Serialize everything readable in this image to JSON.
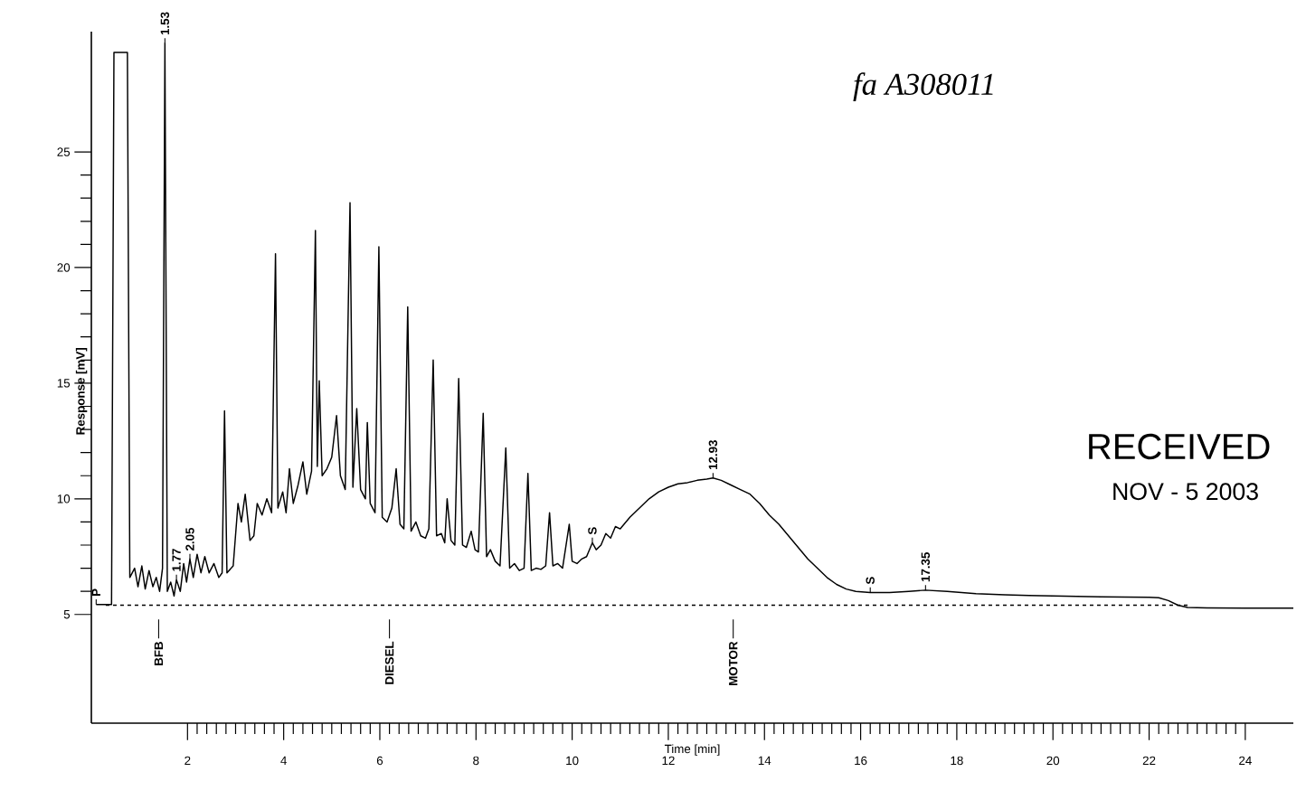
{
  "chart_data": {
    "type": "line",
    "xlabel": "Time [min]",
    "ylabel": "Response [mV]",
    "xlim": [
      0,
      25
    ],
    "ylim": [
      0.3,
      30.2
    ],
    "xticks": [
      2,
      4,
      6,
      8,
      10,
      12,
      14,
      16,
      18,
      20,
      22,
      24
    ],
    "yticks": [
      5,
      10,
      15,
      20,
      25
    ],
    "series": [
      {
        "color": "#000000",
        "x": [
          0.1,
          0.42,
          0.47,
          0.75,
          0.8,
          0.9,
          0.97,
          1.05,
          1.12,
          1.2,
          1.28,
          1.35,
          1.42,
          1.48,
          1.53,
          1.58,
          1.65,
          1.72,
          1.77,
          1.85,
          1.92,
          1.98,
          2.05,
          2.12,
          2.2,
          2.28,
          2.36,
          2.45,
          2.55,
          2.65,
          2.72,
          2.77,
          2.82,
          2.95,
          3.05,
          3.12,
          3.2,
          3.3,
          3.38,
          3.45,
          3.55,
          3.65,
          3.75,
          3.83,
          3.88,
          3.98,
          4.05,
          4.12,
          4.2,
          4.3,
          4.4,
          4.48,
          4.58,
          4.66,
          4.7,
          4.74,
          4.8,
          4.9,
          5.0,
          5.1,
          5.18,
          5.28,
          5.38,
          5.44,
          5.52,
          5.6,
          5.7,
          5.74,
          5.8,
          5.9,
          5.98,
          6.05,
          6.15,
          6.25,
          6.34,
          6.42,
          6.5,
          6.58,
          6.65,
          6.75,
          6.85,
          6.95,
          7.02,
          7.11,
          7.18,
          7.28,
          7.35,
          7.4,
          7.48,
          7.56,
          7.64,
          7.72,
          7.8,
          7.9,
          7.98,
          8.05,
          8.15,
          8.22,
          8.3,
          8.4,
          8.5,
          8.62,
          8.7,
          8.8,
          8.9,
          9.0,
          9.08,
          9.15,
          9.25,
          9.35,
          9.45,
          9.53,
          9.6,
          9.7,
          9.8,
          9.94,
          10.0,
          10.1,
          10.2,
          10.3,
          10.42,
          10.5,
          10.6,
          10.7,
          10.8,
          10.9,
          11.0,
          11.2,
          11.4,
          11.6,
          11.8,
          12.0,
          12.2,
          12.4,
          12.6,
          12.8,
          12.93,
          13.1,
          13.3,
          13.5,
          13.7,
          13.9,
          14.1,
          14.3,
          14.5,
          14.7,
          14.9,
          15.1,
          15.3,
          15.5,
          15.7,
          15.9,
          16.2,
          16.6,
          17.0,
          17.35,
          17.8,
          18.4,
          19.0,
          19.5,
          20.0,
          20.5,
          21.0,
          21.5,
          22.0,
          22.2,
          22.4,
          22.6,
          22.8,
          23.2,
          24.0,
          25.0
        ],
        "values": [
          5.43,
          5.43,
          29.3,
          29.3,
          6.6,
          7.0,
          6.2,
          7.1,
          6.1,
          6.9,
          6.2,
          6.6,
          6.0,
          7.0,
          29.7,
          6.0,
          6.4,
          5.8,
          6.5,
          6.0,
          7.2,
          6.4,
          7.4,
          6.6,
          7.6,
          6.8,
          7.5,
          6.8,
          7.2,
          6.6,
          6.8,
          13.8,
          6.8,
          7.1,
          9.8,
          9.0,
          10.2,
          8.2,
          8.4,
          9.8,
          9.3,
          10.0,
          9.4,
          20.6,
          9.6,
          10.3,
          9.4,
          11.3,
          9.8,
          10.6,
          11.6,
          10.2,
          11.2,
          21.6,
          11.4,
          15.1,
          11.0,
          11.3,
          11.8,
          13.6,
          11.0,
          10.4,
          22.8,
          10.5,
          13.9,
          10.4,
          10.0,
          13.3,
          9.8,
          9.4,
          20.9,
          9.2,
          9.0,
          9.6,
          11.3,
          8.9,
          8.7,
          18.3,
          8.6,
          9.0,
          8.4,
          8.3,
          8.7,
          16.0,
          8.4,
          8.5,
          8.1,
          10.0,
          8.2,
          8.0,
          15.2,
          8.0,
          7.9,
          8.6,
          7.8,
          7.7,
          13.7,
          7.5,
          7.8,
          7.3,
          7.1,
          12.2,
          7.0,
          7.2,
          6.9,
          7.0,
          11.1,
          6.9,
          7.0,
          6.95,
          7.1,
          9.4,
          7.1,
          7.2,
          7.0,
          8.9,
          7.3,
          7.2,
          7.4,
          7.5,
          8.1,
          7.8,
          8.0,
          8.5,
          8.3,
          8.8,
          8.7,
          9.2,
          9.6,
          10.0,
          10.3,
          10.5,
          10.65,
          10.7,
          10.8,
          10.85,
          10.9,
          10.8,
          10.6,
          10.4,
          10.2,
          9.8,
          9.3,
          8.9,
          8.4,
          7.9,
          7.4,
          7.0,
          6.6,
          6.3,
          6.1,
          6.0,
          5.95,
          5.95,
          6.0,
          6.05,
          6.0,
          5.9,
          5.85,
          5.82,
          5.8,
          5.78,
          5.76,
          5.75,
          5.74,
          5.72,
          5.6,
          5.4,
          5.3,
          5.28,
          5.27,
          5.27
        ]
      },
      {
        "color": "#000000",
        "line_style": "dashed",
        "x": [
          0.3,
          22.8
        ],
        "values": [
          5.4,
          5.4
        ]
      }
    ],
    "annotations": [
      "fa A308011",
      "RECEIVED",
      "NOV - 5 2003",
      {
        "text": "P",
        "x": 0.1,
        "y": 5.43
      },
      {
        "text": "1.53",
        "x": 1.53,
        "y": 29.7
      },
      {
        "text": "1.77",
        "x": 1.77,
        "y": 6.5
      },
      {
        "text": "2.05",
        "x": 2.05,
        "y": 7.4
      },
      {
        "text": "S",
        "x": 10.42,
        "y": 8.1
      },
      {
        "text": "12.93",
        "x": 12.93,
        "y": 10.9
      },
      {
        "text": "S",
        "x": 16.2,
        "y": 5.95
      },
      {
        "text": "17.35",
        "x": 17.35,
        "y": 6.05
      },
      "BFB",
      "DIESEL",
      "MOTOR"
    ]
  }
}
